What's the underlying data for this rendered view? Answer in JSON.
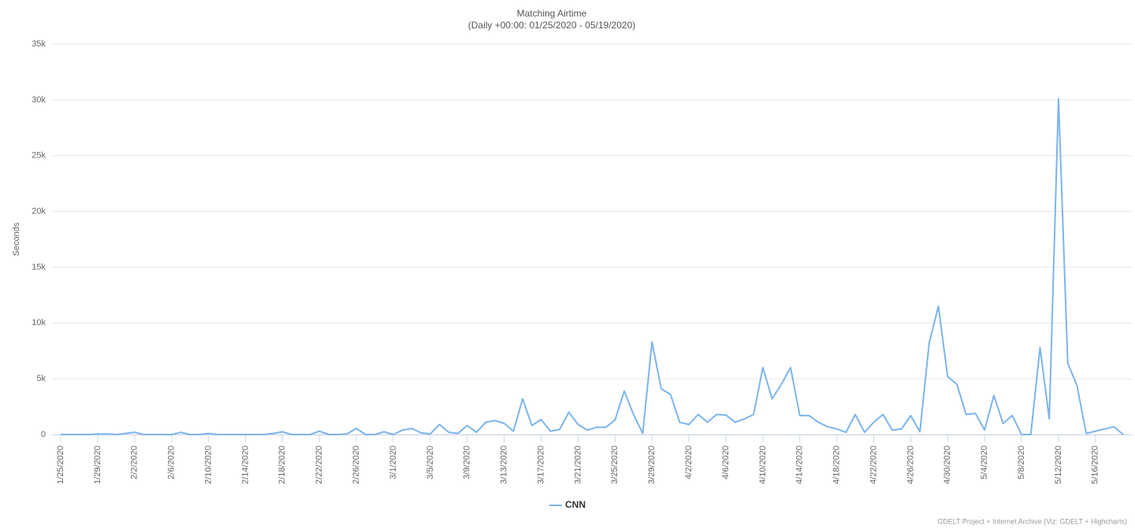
{
  "chart_data": {
    "type": "line",
    "title": "Matching Airtime",
    "subtitle": "(Daily +00:00: 01/25/2020 - 05/19/2020)",
    "y_label": "Seconds",
    "credit": "GDELT Project + Internet Archive (Viz: GDELT + Highcharts)",
    "categories": [
      "1/25/2020",
      null,
      null,
      null,
      "1/29/2020",
      null,
      null,
      null,
      "2/2/2020",
      null,
      null,
      null,
      "2/6/2020",
      null,
      null,
      null,
      "2/10/2020",
      null,
      null,
      null,
      "2/14/2020",
      null,
      null,
      null,
      "2/18/2020",
      null,
      null,
      null,
      "2/22/2020",
      null,
      null,
      null,
      "2/26/2020",
      null,
      null,
      null,
      "3/1/2020",
      null,
      null,
      null,
      "3/5/2020",
      null,
      null,
      null,
      "3/9/2020",
      null,
      null,
      null,
      "3/13/2020",
      null,
      null,
      null,
      "3/17/2020",
      null,
      null,
      null,
      "3/21/2020",
      null,
      null,
      null,
      "3/25/2020",
      null,
      null,
      null,
      "3/29/2020",
      null,
      null,
      null,
      "4/2/2020",
      null,
      null,
      null,
      "4/6/2020",
      null,
      null,
      null,
      "4/10/2020",
      null,
      null,
      null,
      "4/14/2020",
      null,
      null,
      null,
      "4/18/2020",
      null,
      null,
      null,
      "4/22/2020",
      null,
      null,
      null,
      "4/26/2020",
      null,
      null,
      null,
      "4/30/2020",
      null,
      null,
      null,
      "5/4/2020",
      null,
      null,
      null,
      "5/8/2020",
      null,
      null,
      null,
      "5/12/2020",
      null,
      null,
      null,
      "5/16/2020",
      null,
      null,
      null
    ],
    "series": [
      {
        "name": "CNN",
        "color": "#7cb5ec",
        "values": [
          0,
          0,
          0,
          0,
          50,
          50,
          0,
          100,
          200,
          0,
          0,
          0,
          0,
          200,
          0,
          0,
          100,
          0,
          0,
          0,
          0,
          0,
          0,
          100,
          250,
          0,
          0,
          0,
          300,
          0,
          0,
          50,
          550,
          0,
          0,
          250,
          0,
          400,
          550,
          150,
          50,
          900,
          200,
          100,
          800,
          200,
          1100,
          1250,
          1000,
          300,
          3200,
          800,
          1350,
          300,
          450,
          2000,
          900,
          400,
          650,
          650,
          1300,
          3900,
          1800,
          100,
          8300,
          4100,
          3600,
          1100,
          900,
          1800,
          1100,
          1800,
          1750,
          1100,
          1400,
          1800,
          6000,
          3200,
          4500,
          6000,
          1700,
          1700,
          1100,
          700,
          500,
          200,
          1800,
          200,
          1100,
          1800,
          400,
          500,
          1700,
          250,
          8200,
          11500,
          5200,
          4500,
          1800,
          1900,
          400,
          3500,
          1000,
          1700,
          0,
          0,
          7800,
          1400,
          30100,
          6400,
          4400,
          100,
          300,
          500,
          700,
          0
        ]
      }
    ],
    "ylim": [
      0,
      35000
    ],
    "yticks": [
      0,
      {
        "value": 5000,
        "label": "5k"
      },
      {
        "value": 10000,
        "label": "10k"
      },
      {
        "value": 15000,
        "label": "15k"
      },
      {
        "value": 20000,
        "label": "20k"
      },
      {
        "value": 25000,
        "label": "25k"
      },
      {
        "value": 30000,
        "label": "30k"
      },
      {
        "value": 35000,
        "label": "35k"
      }
    ],
    "grid": true,
    "legend": "bottom"
  }
}
